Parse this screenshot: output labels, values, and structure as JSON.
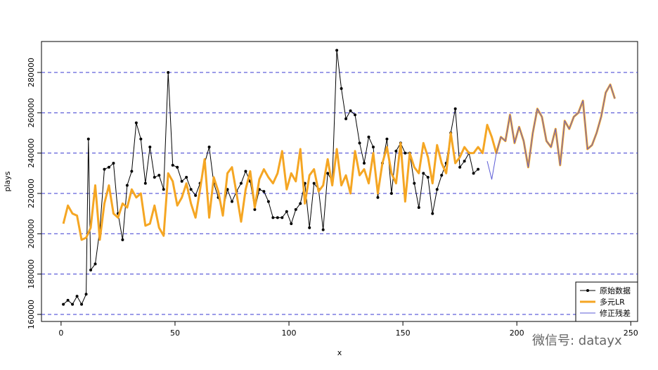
{
  "chart_data": {
    "type": "line",
    "x_label": "x",
    "y_label": "plays",
    "xlim": [
      -8.6,
      253
    ],
    "ylim": [
      156500,
      295350
    ],
    "xticks": [
      0,
      50,
      100,
      150,
      200,
      250
    ],
    "yticks": [
      160000,
      180000,
      200000,
      220000,
      240000,
      260000,
      280000
    ],
    "grid": true,
    "legend": "bottom-right",
    "watermark": "微信号: datayx",
    "series": [
      {
        "name": "原始数据",
        "color": "#000000",
        "points": true,
        "x": [
          1,
          3,
          5,
          7,
          9,
          11,
          12,
          13,
          15,
          17,
          19,
          21,
          23,
          25,
          27,
          29,
          31,
          33,
          35,
          37,
          39,
          41,
          43,
          45,
          47,
          49,
          51,
          53,
          55,
          57,
          59,
          61,
          63,
          65,
          67,
          69,
          71,
          73,
          75,
          77,
          79,
          81,
          83,
          85,
          87,
          89,
          91,
          93,
          95,
          97,
          99,
          101,
          103,
          105,
          107,
          109,
          111,
          113,
          115,
          117,
          119,
          121,
          123,
          125,
          127,
          129,
          131,
          133,
          135,
          137,
          139,
          141,
          143,
          145,
          147,
          149,
          151,
          153,
          155,
          157,
          159,
          161,
          163,
          165,
          167,
          169,
          171,
          173,
          175,
          177,
          179,
          181,
          183
        ],
        "values": [
          165000,
          167000,
          165000,
          169000,
          165000,
          170000,
          247000,
          182000,
          185000,
          202000,
          232000,
          233000,
          235000,
          210000,
          197000,
          224000,
          231000,
          255000,
          247000,
          225000,
          243000,
          228000,
          229000,
          222000,
          280000,
          234000,
          233000,
          226000,
          228000,
          222000,
          219000,
          225000,
          235000,
          243000,
          225000,
          218000,
          211000,
          222000,
          216000,
          221000,
          225000,
          231000,
          226000,
          212000,
          222000,
          221000,
          216000,
          208000,
          208000,
          208000,
          211000,
          205000,
          212000,
          215000,
          225000,
          203000,
          225000,
          222000,
          202000,
          230000,
          226000,
          291000,
          272000,
          257000,
          261000,
          259000,
          245000,
          235000,
          248000,
          243000,
          218000,
          235000,
          247000,
          220000,
          241000,
          245000,
          240000,
          240000,
          225000,
          213000,
          230000,
          228000,
          210000,
          222000,
          229000,
          235000,
          250000,
          262000,
          233000,
          236000,
          240000,
          230000,
          232000
        ]
      },
      {
        "name": "多元LR",
        "color": "#f5a623",
        "points": false,
        "x": [
          1,
          3,
          5,
          7,
          9,
          11,
          13,
          15,
          17,
          19,
          21,
          23,
          25,
          27,
          29,
          31,
          33,
          35,
          37,
          39,
          41,
          43,
          45,
          47,
          49,
          51,
          53,
          55,
          57,
          59,
          61,
          63,
          65,
          67,
          69,
          71,
          73,
          75,
          77,
          79,
          81,
          83,
          85,
          87,
          89,
          91,
          93,
          95,
          97,
          99,
          101,
          103,
          105,
          107,
          109,
          111,
          113,
          115,
          117,
          119,
          121,
          123,
          125,
          127,
          129,
          131,
          133,
          135,
          137,
          139,
          141,
          143,
          145,
          147,
          149,
          151,
          153,
          155,
          157,
          159,
          161,
          163,
          165,
          167,
          169,
          171,
          173,
          175,
          177,
          179,
          181,
          183,
          185,
          187,
          189,
          191,
          193,
          195,
          197,
          199,
          201,
          203,
          205,
          207,
          209,
          211,
          213,
          215,
          217,
          219,
          221,
          223,
          225,
          227,
          229,
          231,
          233,
          235,
          237,
          239,
          241,
          243
        ],
        "values": [
          205000,
          214000,
          210000,
          209000,
          197000,
          198000,
          203000,
          224000,
          197000,
          215000,
          224000,
          210000,
          208000,
          215000,
          213000,
          222000,
          218000,
          220000,
          204000,
          205000,
          214000,
          203000,
          199000,
          230000,
          226000,
          214000,
          218000,
          225000,
          215000,
          208000,
          222000,
          237000,
          208000,
          228000,
          221000,
          209000,
          230000,
          233000,
          220000,
          206000,
          222000,
          231000,
          213000,
          227000,
          232000,
          228000,
          225000,
          230000,
          241000,
          222000,
          230000,
          226000,
          242000,
          215000,
          229000,
          232000,
          221000,
          224000,
          237000,
          224000,
          242000,
          224000,
          229000,
          220000,
          241000,
          229000,
          232000,
          225000,
          240000,
          220000,
          235000,
          243000,
          230000,
          225000,
          245000,
          216000,
          240000,
          233000,
          230000,
          245000,
          238000,
          225000,
          244000,
          235000,
          230000,
          250000,
          235000,
          238000,
          243000,
          240000,
          240000,
          243000,
          240000,
          254000,
          248000,
          240000,
          248000,
          246000,
          259000,
          245000,
          253000,
          246000,
          233000,
          250000,
          262000,
          258000,
          246000,
          243000,
          252000,
          234000,
          256000,
          252000,
          258000,
          260000,
          266000,
          242000,
          244000,
          250000,
          258000,
          270000,
          274000,
          267000
        ]
      },
      {
        "name": "修正残差",
        "color": "#5b5bd6",
        "points": false,
        "x": [
          187,
          189,
          191,
          193,
          195,
          197,
          199,
          201,
          203,
          205,
          207,
          209,
          211,
          213,
          215,
          217,
          219,
          221,
          223,
          225,
          227,
          229,
          231,
          233,
          235,
          237,
          239,
          241,
          243
        ],
        "values": [
          236000,
          227000,
          240000,
          248000,
          246000,
          259000,
          245000,
          253000,
          246000,
          233000,
          250000,
          262000,
          258000,
          246000,
          243000,
          252000,
          234000,
          256000,
          252000,
          258000,
          260000,
          266000,
          242000,
          244000,
          250000,
          258000,
          270000,
          274000,
          267000
        ]
      }
    ]
  }
}
